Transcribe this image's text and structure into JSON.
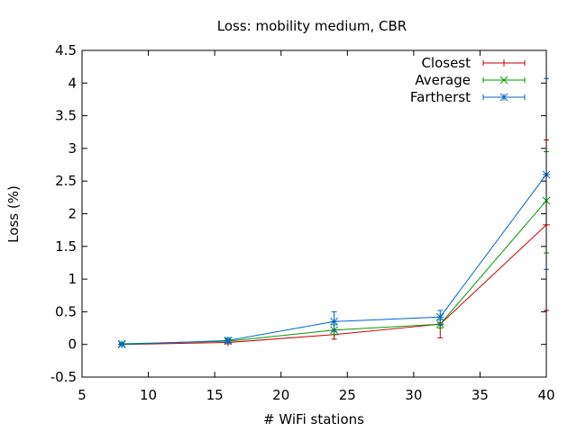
{
  "chart_data": {
    "type": "line",
    "title": "Loss: mobility medium, CBR",
    "xlabel": "# WiFi stations",
    "ylabel": "Loss (%)",
    "xlim": [
      5,
      40
    ],
    "ylim": [
      -0.5,
      4.5
    ],
    "x_ticks": [
      5,
      10,
      15,
      20,
      25,
      30,
      35,
      40
    ],
    "y_ticks": [
      -0.5,
      0,
      0.5,
      1,
      1.5,
      2,
      2.5,
      3,
      3.5,
      4,
      4.5
    ],
    "x_tick_labels": [
      "5",
      "10",
      "15",
      "20",
      "25",
      "30",
      "35",
      "40"
    ],
    "y_tick_labels": [
      "-0.5",
      "0",
      "0.5",
      "1",
      "1.5",
      "2",
      "2.5",
      "3",
      "3.5",
      "4",
      "4.5"
    ],
    "grid": false,
    "legend_position": "top-right",
    "x": [
      8,
      16,
      24,
      32,
      40
    ],
    "series": [
      {
        "name": "Closest",
        "color": "#cc0000",
        "marker": "plus",
        "values": [
          0.0,
          0.03,
          0.15,
          0.31,
          1.83
        ],
        "err_low": [
          0.0,
          0.01,
          0.08,
          0.1,
          0.52
        ],
        "err_high": [
          0.01,
          0.05,
          0.22,
          0.33,
          3.13
        ]
      },
      {
        "name": "Average",
        "color": "#009900",
        "marker": "cross",
        "values": [
          0.01,
          0.05,
          0.22,
          0.31,
          2.2
        ],
        "err_low": [
          0.0,
          0.03,
          0.15,
          0.25,
          1.4
        ],
        "err_high": [
          0.02,
          0.07,
          0.3,
          0.38,
          2.95
        ]
      },
      {
        "name": "Fartherst",
        "color": "#0066cc",
        "marker": "star",
        "values": [
          0.0,
          0.06,
          0.35,
          0.42,
          2.6
        ],
        "err_low": [
          0.0,
          0.03,
          0.2,
          0.3,
          1.15
        ],
        "err_high": [
          0.01,
          0.1,
          0.5,
          0.52,
          4.07
        ]
      }
    ]
  }
}
